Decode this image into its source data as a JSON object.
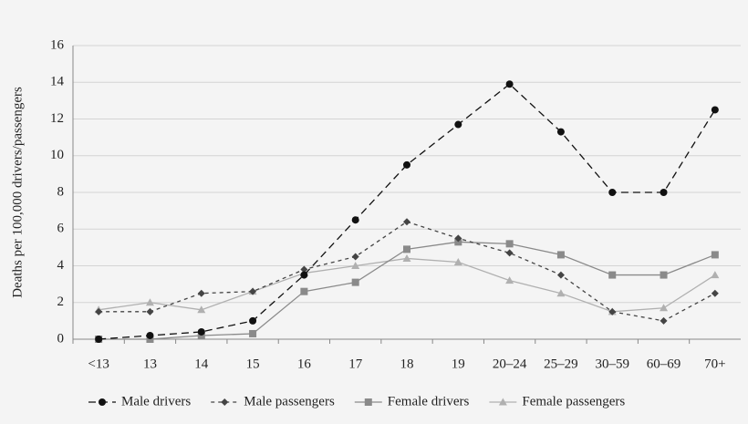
{
  "chart_data": {
    "type": "line",
    "ylabel": "Deaths per 100,000 drivers/passengers",
    "categories": [
      "<13",
      "13",
      "14",
      "15",
      "16",
      "17",
      "18",
      "19",
      "20–24",
      "25–29",
      "30–59",
      "60–69",
      "70+"
    ],
    "series": [
      {
        "name": "Male drivers",
        "color": "#111111",
        "marker": "circle",
        "dash": "8,5",
        "values": [
          0,
          0.2,
          0.4,
          1.0,
          3.5,
          6.5,
          9.5,
          11.7,
          13.9,
          11.3,
          8.0,
          8.0,
          12.5
        ]
      },
      {
        "name": "Male passengers",
        "color": "#444444",
        "marker": "diamond",
        "dash": "4,4",
        "values": [
          1.5,
          1.5,
          2.5,
          2.6,
          3.8,
          4.5,
          6.4,
          5.5,
          4.7,
          3.5,
          1.5,
          1.0,
          2.5
        ]
      },
      {
        "name": "Female drivers",
        "color": "#8a8a8a",
        "marker": "square",
        "dash": "none",
        "values": [
          0,
          0,
          0.2,
          0.3,
          2.6,
          3.1,
          4.9,
          5.3,
          5.2,
          4.6,
          3.5,
          3.5,
          4.6
        ]
      },
      {
        "name": "Female passengers",
        "color": "#b0b0b0",
        "marker": "triangle",
        "dash": "none",
        "values": [
          1.6,
          2.0,
          1.6,
          2.6,
          3.6,
          4.0,
          4.4,
          4.2,
          3.2,
          2.5,
          1.5,
          1.7,
          3.5
        ]
      }
    ],
    "ylim": [
      0,
      16
    ],
    "yticks": [
      0,
      2,
      4,
      6,
      8,
      10,
      12,
      14,
      16
    ],
    "grid": true,
    "legend": "bottom"
  }
}
